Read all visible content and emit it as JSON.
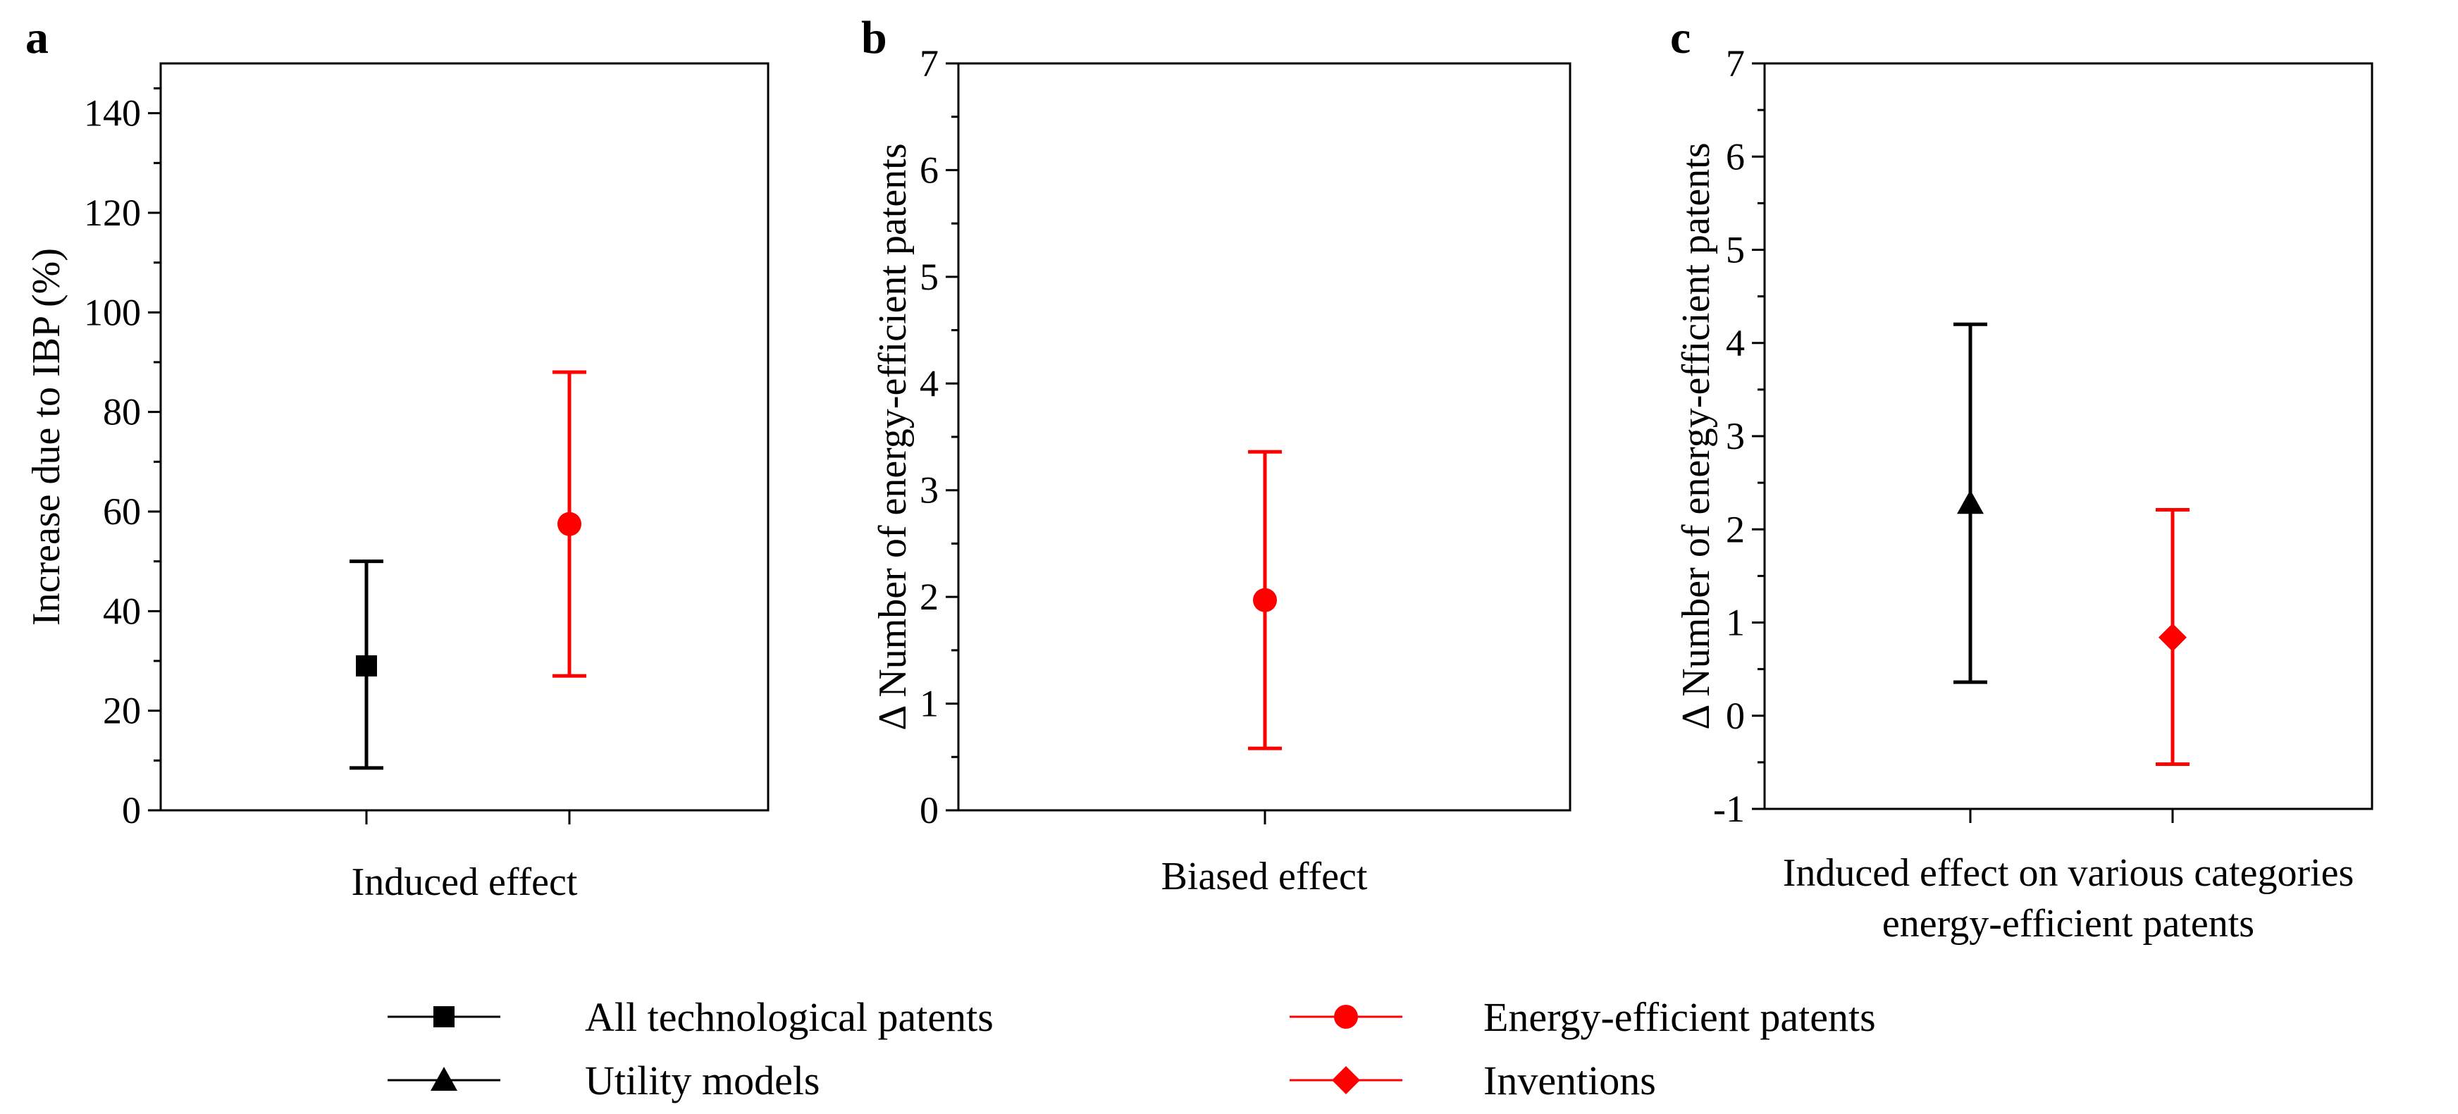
{
  "colors": {
    "black": "#000000",
    "red": "#ff0000"
  },
  "legend": [
    {
      "label": "All technological patents",
      "color": "#000000",
      "marker": "square"
    },
    {
      "label": "Energy-efficient patents",
      "color": "#ff0000",
      "marker": "circle"
    },
    {
      "label": "Utility models",
      "color": "#000000",
      "marker": "triangle"
    },
    {
      "label": "Inventions",
      "color": "#ff0000",
      "marker": "diamond"
    }
  ],
  "chart_data": [
    {
      "panel": "a",
      "type": "scatter",
      "xlabel": "Induced effect",
      "ylabel": "Increase due to IBP (%)",
      "ylim": [
        0,
        150
      ],
      "yticks": [
        0,
        20,
        40,
        60,
        80,
        100,
        120,
        140
      ],
      "series": [
        {
          "name": "All technological patents",
          "color": "#000000",
          "marker": "square",
          "value": 29,
          "lower": 8.5,
          "upper": 50
        },
        {
          "name": "Energy-efficient patents",
          "color": "#ff0000",
          "marker": "circle",
          "value": 57.5,
          "lower": 27,
          "upper": 88
        }
      ]
    },
    {
      "panel": "b",
      "type": "scatter",
      "xlabel": "Biased effect",
      "ylabel": "Δ Number of energy-efficient patents",
      "ylim": [
        0,
        7
      ],
      "yticks": [
        0,
        1,
        2,
        3,
        4,
        5,
        6,
        7
      ],
      "series": [
        {
          "name": "Energy-efficient patents",
          "color": "#ff0000",
          "marker": "circle",
          "value": 1.97,
          "lower": 0.58,
          "upper": 3.36
        }
      ]
    },
    {
      "panel": "c",
      "type": "scatter",
      "xlabel": "Induced effect on various categories energy-efficient patents",
      "xlabel_lines": [
        "Induced effect on various categories",
        "energy-efficient patents"
      ],
      "ylabel": "Δ Number of energy-efficient patents",
      "ylim": [
        -1,
        7
      ],
      "yticks": [
        -1,
        0,
        1,
        2,
        3,
        4,
        5,
        6,
        7
      ],
      "series": [
        {
          "name": "Utility models",
          "color": "#000000",
          "marker": "triangle",
          "value": 2.28,
          "lower": 0.36,
          "upper": 4.2
        },
        {
          "name": "Inventions",
          "color": "#ff0000",
          "marker": "diamond",
          "value": 0.84,
          "lower": -0.52,
          "upper": 2.21
        }
      ]
    }
  ]
}
